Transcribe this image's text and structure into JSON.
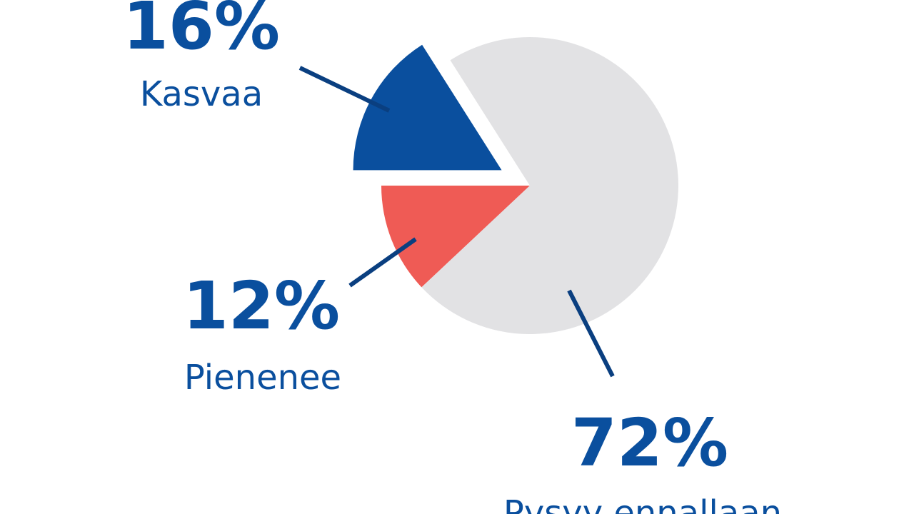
{
  "chart_data": {
    "type": "pie",
    "categories": [
      "Kasvaa",
      "Pienenee",
      "Pysyy ennallaan"
    ],
    "values": [
      16,
      12,
      72
    ],
    "value_labels": [
      "16%",
      "12%",
      "72%"
    ],
    "colors": [
      "#0a4f9e",
      "#ef5b55",
      "#e2e2e4"
    ],
    "exploded": [
      true,
      false,
      false
    ]
  }
}
